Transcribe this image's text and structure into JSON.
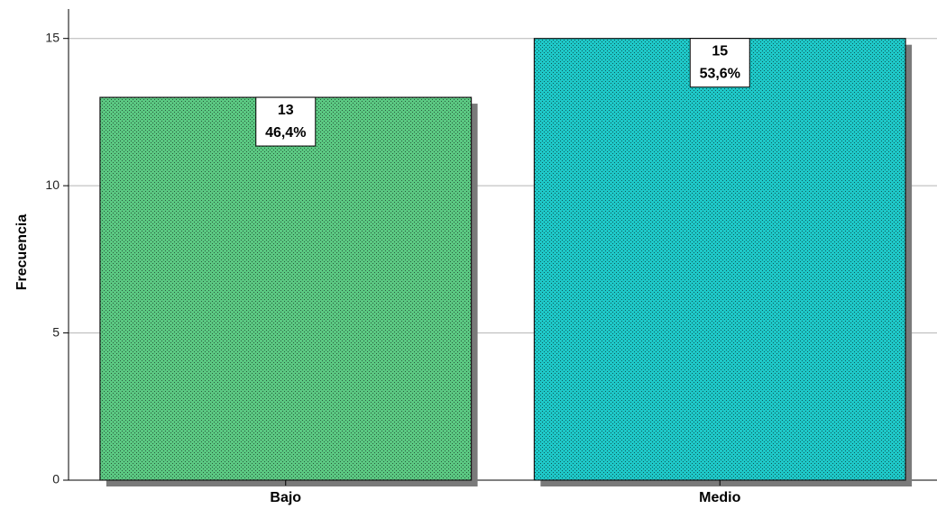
{
  "chart_data": {
    "type": "bar",
    "categories": [
      "Bajo",
      "Medio"
    ],
    "values": [
      13,
      15
    ],
    "percentages": [
      "46,4%",
      "53,6%"
    ],
    "colors": [
      "#5bc882",
      "#1ec8c8"
    ],
    "title": "",
    "xlabel": "",
    "ylabel": "Frecuencia",
    "ylim": [
      0,
      16
    ],
    "yticks": [
      0,
      5,
      10,
      15
    ],
    "grid": true,
    "legend": "none"
  }
}
